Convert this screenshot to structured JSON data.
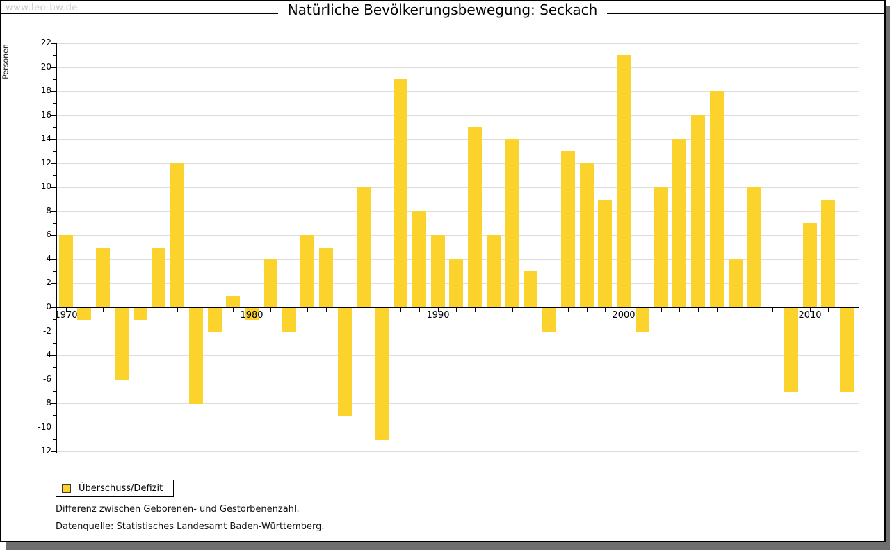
{
  "watermark": "www.leo-bw.de",
  "header": {
    "title": "Natürliche Bevölkerungsbewegung: Seckach"
  },
  "legend": {
    "label": "Überschuss/Defizit",
    "swatch_color": "#fcd32d"
  },
  "notes": {
    "line1": "Differenz zwischen Geborenen- und Gestorbenenzahl.",
    "line2": "Datenquelle: Statistisches Landesamt Baden-Württemberg."
  },
  "chart_data": {
    "type": "bar",
    "title": "Natürliche Bevölkerungsbewegung: Seckach",
    "xlabel": "",
    "ylabel": "Personen",
    "series_name": "Überschuss/Defizit",
    "x": [
      1970,
      1971,
      1972,
      1973,
      1974,
      1975,
      1976,
      1977,
      1978,
      1979,
      1980,
      1981,
      1982,
      1983,
      1984,
      1985,
      1986,
      1987,
      1988,
      1989,
      1990,
      1991,
      1992,
      1993,
      1994,
      1995,
      1996,
      1997,
      1998,
      1999,
      2000,
      2001,
      2002,
      2003,
      2004,
      2005,
      2006,
      2007,
      2008,
      2009,
      2010,
      2011,
      2012
    ],
    "values": [
      6,
      -1,
      5,
      -6,
      -1,
      5,
      12,
      -8,
      -2,
      1,
      -1,
      4,
      -2,
      6,
      5,
      -9,
      10,
      -11,
      19,
      8,
      6,
      4,
      15,
      6,
      14,
      3,
      -2,
      13,
      12,
      9,
      21,
      -2,
      10,
      14,
      16,
      18,
      4,
      10,
      0,
      -7,
      7,
      9,
      -7
    ],
    "ylim": [
      -12,
      22
    ],
    "ytick_label_step": 2,
    "ytick_minor_step": 1,
    "xticks_labeled": [
      1970,
      1980,
      1990,
      2000,
      2010
    ],
    "grid": true,
    "legend_position": "bottom-left",
    "bar_color": "#fcd32d"
  }
}
